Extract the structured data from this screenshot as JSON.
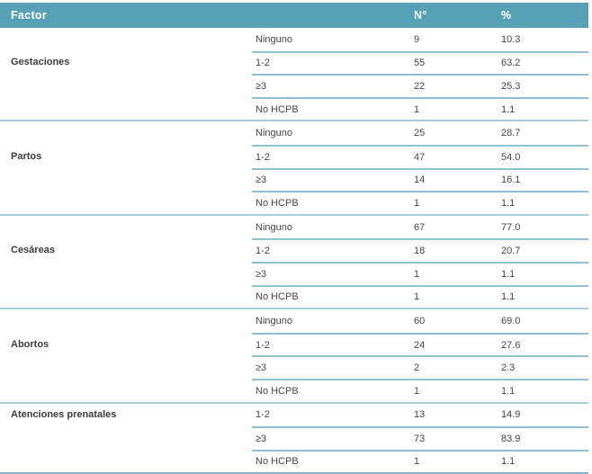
{
  "table": {
    "header": {
      "factor": "Factor",
      "n": "N°",
      "pct": "%"
    },
    "groups": [
      {
        "factor": "Gestaciones",
        "rows": [
          {
            "label": "Ninguno",
            "n": "9",
            "pct": "10.3"
          },
          {
            "label": "1-2",
            "n": "55",
            "pct": "63.2"
          },
          {
            "label": "≥3",
            "n": "22",
            "pct": "25.3"
          },
          {
            "label": "No HCPB",
            "n": "1",
            "pct": "1.1"
          }
        ]
      },
      {
        "factor": "Partos",
        "rows": [
          {
            "label": "Ninguno",
            "n": "25",
            "pct": "28.7"
          },
          {
            "label": "1-2",
            "n": "47",
            "pct": "54.0"
          },
          {
            "label": "≥3",
            "n": "14",
            "pct": "16.1"
          },
          {
            "label": "No HCPB",
            "n": "1",
            "pct": "1.1"
          }
        ]
      },
      {
        "factor": "Cesáreas",
        "rows": [
          {
            "label": "Ninguno",
            "n": "67",
            "pct": "77.0"
          },
          {
            "label": "1-2",
            "n": "18",
            "pct": "20.7"
          },
          {
            "label": "≥3",
            "n": "1",
            "pct": "1.1"
          },
          {
            "label": "No HCPB",
            "n": "1",
            "pct": "1.1"
          }
        ]
      },
      {
        "factor": "Abortos",
        "rows": [
          {
            "label": "Ninguno",
            "n": "60",
            "pct": "69.0"
          },
          {
            "label": "1-2",
            "n": "24",
            "pct": "27.6"
          },
          {
            "label": "≥3",
            "n": "2",
            "pct": "2.3"
          },
          {
            "label": "No HCPB",
            "n": "1",
            "pct": "1.1"
          }
        ]
      },
      {
        "factor": "Atenciones prenatales",
        "rows": [
          {
            "label": "1-2",
            "n": "13",
            "pct": "14.9"
          },
          {
            "label": "≥3",
            "n": "73",
            "pct": "83.9"
          },
          {
            "label": "No HCPB",
            "n": "1",
            "pct": "1.1"
          }
        ]
      }
    ],
    "colors": {
      "header_bg": "#57a1b7",
      "header_text": "#ffffff",
      "body_text": "#474747",
      "row_line": "#8fbfd4",
      "group_line": "#a5cfdd",
      "bottom_line": "#7fb3cf"
    }
  }
}
